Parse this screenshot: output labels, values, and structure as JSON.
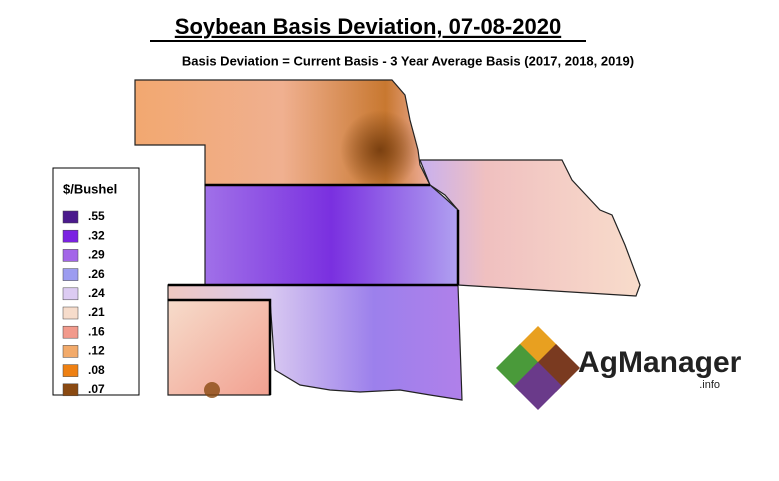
{
  "header": {
    "title": "Soybean Basis Deviation, 07-08-2020",
    "subtitle": "Basis Deviation = Current Basis - 3 Year Average Basis (2017, 2018, 2019)"
  },
  "legend": {
    "title": "$/Bushel",
    "entries": [
      {
        "label": ".55",
        "color": "#4b1a8c"
      },
      {
        "label": ".32",
        "color": "#7b22e2"
      },
      {
        "label": ".29",
        "color": "#a366e8"
      },
      {
        "label": ".26",
        "color": "#9c9cf0"
      },
      {
        "label": ".24",
        "color": "#dccbf2"
      },
      {
        "label": ".21",
        "color": "#f6dccb"
      },
      {
        "label": ".16",
        "color": "#f29a8c"
      },
      {
        "label": ".12",
        "color": "#f2aa6a"
      },
      {
        "label": ".08",
        "color": "#ee8012"
      },
      {
        "label": ".07",
        "color": "#8a4a12"
      }
    ]
  },
  "logo": {
    "name": "AgManager",
    "suffix": ".info"
  }
}
